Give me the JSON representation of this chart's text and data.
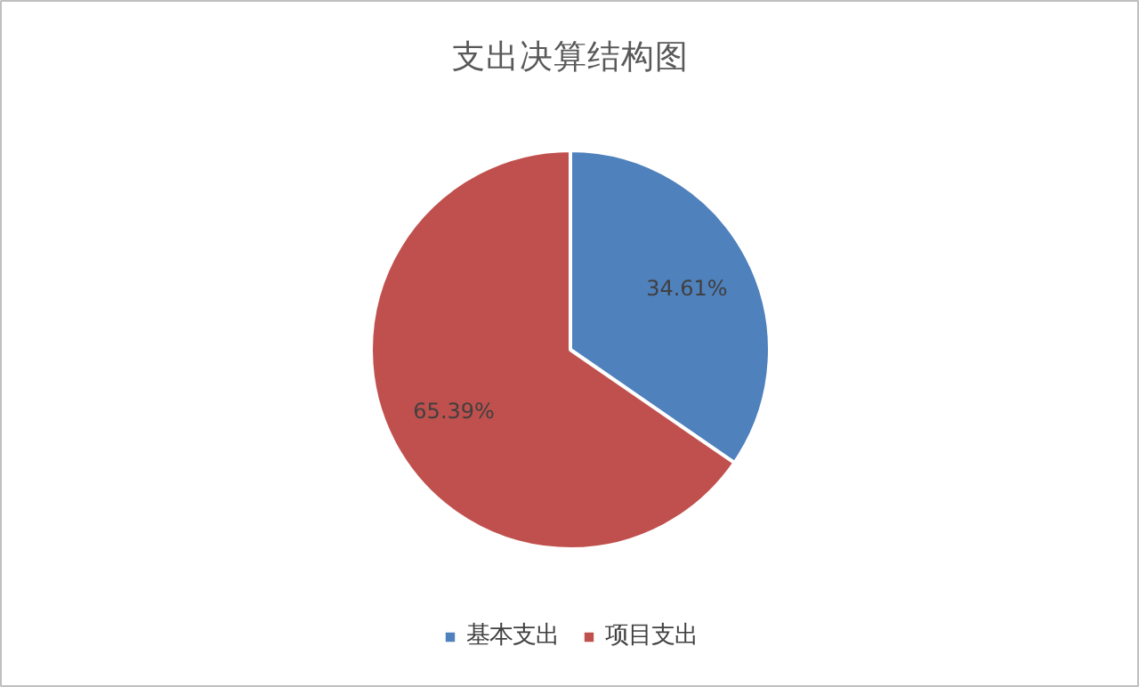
{
  "chart_data": {
    "type": "pie",
    "title": "支出决算结构图",
    "categories": [
      "基本支出",
      "项目支出"
    ],
    "values": [
      34.61,
      65.39
    ],
    "colors": [
      "#4f81bd",
      "#c0504d"
    ],
    "value_labels": [
      "34.61%",
      "65.39%"
    ],
    "legend": "bottom"
  }
}
